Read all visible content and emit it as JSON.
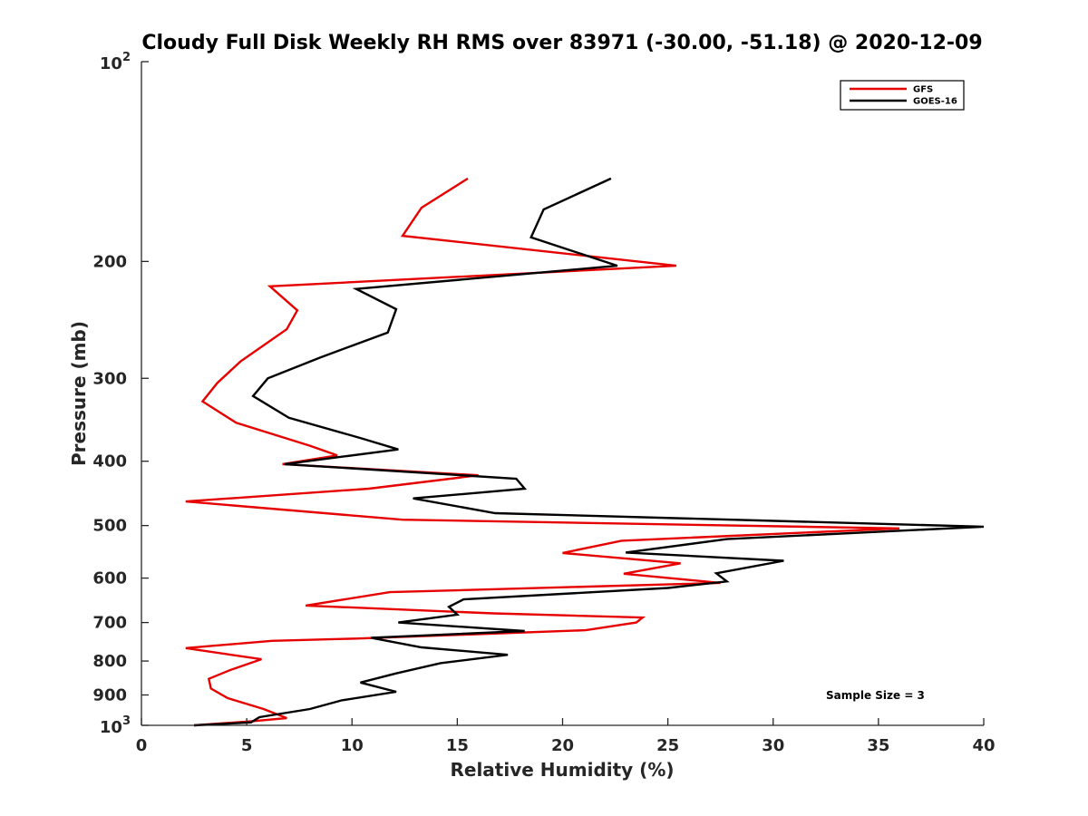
{
  "chart_data": {
    "type": "line",
    "title": "Cloudy Full Disk Weekly RH RMS over 83971 (-30.00, -51.18) @ 2020-12-09",
    "xlabel": "Relative Humidity (%)",
    "ylabel": "Pressure (mb)",
    "xlim": [
      0,
      40
    ],
    "ylim": [
      100,
      1000
    ],
    "y_scale": "log",
    "y_reversed": true,
    "x_ticks": [
      "0",
      "5",
      "10",
      "15",
      "20",
      "25",
      "30",
      "35",
      "40"
    ],
    "y_ticks": [
      {
        "value": 100,
        "base": "10",
        "exp": "2"
      },
      {
        "value": 200,
        "label": "200"
      },
      {
        "value": 300,
        "label": "300"
      },
      {
        "value": 400,
        "label": "400"
      },
      {
        "value": 500,
        "label": "500"
      },
      {
        "value": 600,
        "label": "600"
      },
      {
        "value": 700,
        "label": "700"
      },
      {
        "value": 800,
        "label": "800"
      },
      {
        "value": 900,
        "label": "900"
      },
      {
        "value": 1000,
        "base": "10",
        "exp": "3"
      }
    ],
    "legend_position": "top-right",
    "series": [
      {
        "name": "GFS",
        "color": "#e60000",
        "points": [
          [
            15.5,
            150
          ],
          [
            13.3,
            166
          ],
          [
            12.4,
            183
          ],
          [
            25.4,
            203
          ],
          [
            6.1,
            218
          ],
          [
            7.4,
            237
          ],
          [
            6.9,
            253
          ],
          [
            4.7,
            283
          ],
          [
            3.6,
            305
          ],
          [
            2.9,
            325
          ],
          [
            4.5,
            350
          ],
          [
            8,
            379
          ],
          [
            9.3,
            392
          ],
          [
            6.7,
            404
          ],
          [
            16,
            420
          ],
          [
            10.8,
            440
          ],
          [
            2.1,
            460
          ],
          [
            12.4,
            490
          ],
          [
            36,
            505
          ],
          [
            22.8,
            527
          ],
          [
            20,
            550
          ],
          [
            25.6,
            570
          ],
          [
            22.9,
            591
          ],
          [
            27.5,
            610
          ],
          [
            11.8,
            630
          ],
          [
            7.8,
            660
          ],
          [
            16.7,
            678
          ],
          [
            23.8,
            688
          ],
          [
            23.5,
            700
          ],
          [
            21.1,
            719
          ],
          [
            10.2,
            740
          ],
          [
            6.2,
            746
          ],
          [
            2.1,
            765
          ],
          [
            5.7,
            795
          ],
          [
            4.2,
            826
          ],
          [
            3.2,
            851
          ],
          [
            3.3,
            880
          ],
          [
            4.1,
            910
          ],
          [
            5.8,
            945
          ],
          [
            6.9,
            975
          ],
          [
            5.4,
            985
          ],
          [
            2.5,
            1000
          ]
        ]
      },
      {
        "name": "GOES-16",
        "color": "#000000",
        "points": [
          [
            22.3,
            150
          ],
          [
            19.1,
            167
          ],
          [
            18.5,
            184
          ],
          [
            22.6,
            203
          ],
          [
            10.2,
            220
          ],
          [
            12.1,
            236
          ],
          [
            11.7,
            256
          ],
          [
            8.5,
            279
          ],
          [
            6,
            300
          ],
          [
            5.3,
            319
          ],
          [
            7,
            344
          ],
          [
            10.4,
            369
          ],
          [
            12.2,
            384
          ],
          [
            6.8,
            404
          ],
          [
            17.8,
            425
          ],
          [
            18.2,
            440
          ],
          [
            12.9,
            455
          ],
          [
            16.8,
            479
          ],
          [
            40,
            502
          ],
          [
            27.8,
            524
          ],
          [
            23,
            549
          ],
          [
            30.5,
            565
          ],
          [
            27.3,
            590
          ],
          [
            27.8,
            607
          ],
          [
            25,
            621
          ],
          [
            15.3,
            646
          ],
          [
            14.6,
            663
          ],
          [
            15,
            681
          ],
          [
            12.2,
            700
          ],
          [
            18.2,
            721
          ],
          [
            10.9,
            738
          ],
          [
            13.3,
            763
          ],
          [
            17.4,
            783
          ],
          [
            14.2,
            806
          ],
          [
            12.1,
            835
          ],
          [
            10.4,
            862
          ],
          [
            12.1,
            890
          ],
          [
            9.5,
            917
          ],
          [
            8,
            945
          ],
          [
            5.6,
            972
          ],
          [
            5.2,
            990
          ],
          [
            2.5,
            1000
          ]
        ]
      }
    ],
    "annotations": [
      "Sample Size = 3"
    ]
  }
}
